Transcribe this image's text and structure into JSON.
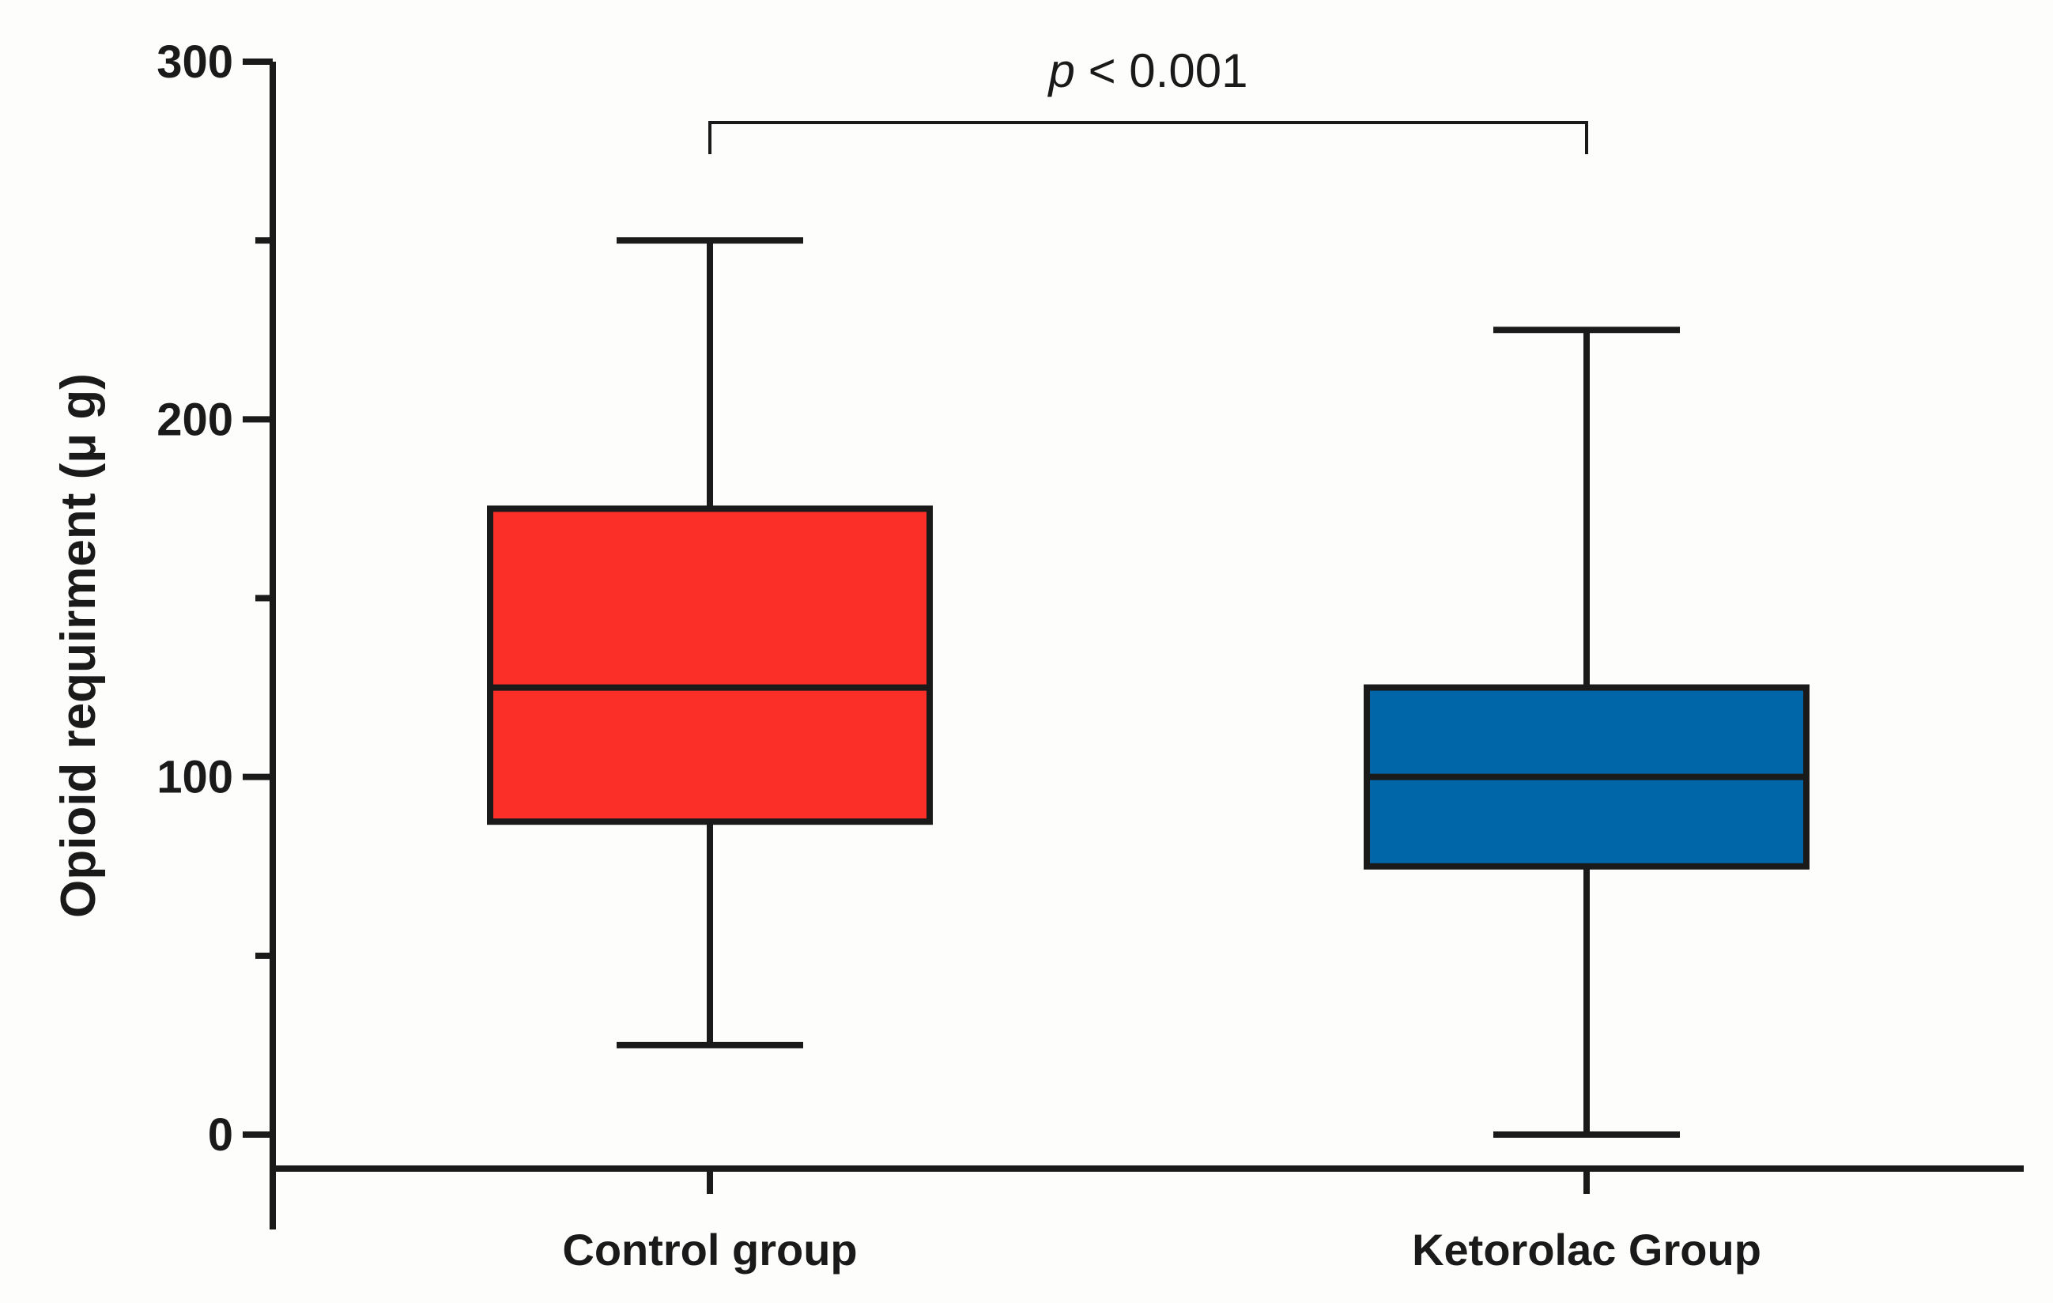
{
  "chart_data": {
    "type": "box",
    "title": "",
    "xlabel": "",
    "ylabel": "Opioid requirment (μ g)",
    "ylim": [
      -10,
      300
    ],
    "y_major_ticks": [
      0,
      100,
      200,
      300
    ],
    "y_minor_ticks": [
      50,
      150,
      250
    ],
    "grid": false,
    "legend": "none",
    "categories": [
      "Control group",
      "Ketorolac Group"
    ],
    "series": [
      {
        "category": "Control group",
        "min": 25,
        "q1": 87.5,
        "median": 125,
        "q3": 175,
        "max": 250,
        "color": "#fc2e28"
      },
      {
        "category": "Ketorolac Group",
        "min": 0,
        "q1": 75,
        "median": 100,
        "q3": 125,
        "max": 225,
        "color": "#0066a8"
      }
    ],
    "annotation": {
      "text_italic": "p",
      "text_rest": " < 0.001",
      "between": [
        "Control group",
        "Ketorolac Group"
      ]
    }
  }
}
